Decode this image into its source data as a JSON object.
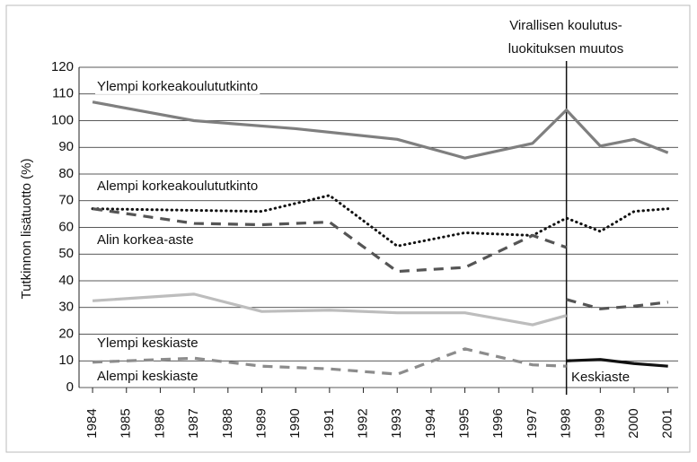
{
  "chart_data": {
    "type": "line",
    "ylabel": "Tutkinnon lisätuotto (%)",
    "annotation": [
      "Virallisen koulutus-",
      "luokituksen muutos"
    ],
    "divider": 1998,
    "xlim": [
      1983.6,
      2001.3
    ],
    "xticks": [
      1984,
      1985,
      1986,
      1987,
      1988,
      1989,
      1990,
      1991,
      1992,
      1993,
      1994,
      1995,
      1996,
      1997,
      1998,
      1999,
      2000,
      2001
    ],
    "ylim": [
      0,
      120
    ],
    "yticks": [
      0,
      10,
      20,
      30,
      40,
      50,
      60,
      70,
      80,
      90,
      100,
      110,
      120
    ],
    "grid": true,
    "series": [
      {
        "name": "Ylempi korkeakoulututkinto",
        "color": "#7f7f7f",
        "style": "solid",
        "x": [
          1984,
          1987,
          1990,
          1993,
          1995,
          1997,
          1998,
          1999,
          2000,
          2001
        ],
        "values": [
          107,
          100,
          97,
          93,
          86,
          91.5,
          104,
          90.5,
          93,
          88
        ]
      },
      {
        "name": "Alempi korkeakoulututkinto",
        "color": "#111111",
        "style": "dotted",
        "x": [
          1984,
          1989,
          1991,
          1993,
          1995,
          1997,
          1998,
          1999,
          2000,
          2001
        ],
        "values": [
          67,
          66,
          72,
          53,
          58,
          57,
          63.5,
          58.5,
          66,
          67
        ]
      },
      {
        "name": "Alin korkea-aste",
        "color": "#555555",
        "style": "dashed",
        "x": [
          1984,
          1987,
          1989,
          1991,
          1993,
          1995,
          1997,
          1998,
          1998,
          1998,
          1999,
          2000,
          2001
        ],
        "values": [
          67,
          61.5,
          61,
          62,
          43.5,
          45,
          57,
          52.5,
          null,
          33,
          29.5,
          30.5,
          32
        ]
      },
      {
        "name": "Ylempi keskiaste",
        "color": "#bdbdbd",
        "style": "solid",
        "x": [
          1984,
          1987,
          1989,
          1991,
          1993,
          1995,
          1997,
          1998
        ],
        "values": [
          32.5,
          35,
          28.5,
          29,
          28,
          28,
          23.5,
          27
        ]
      },
      {
        "name": "Alempi keskiaste",
        "color": "#8c8c8c",
        "style": "dashed",
        "x": [
          1984,
          1987,
          1989,
          1991,
          1993,
          1995,
          1997,
          1998
        ],
        "values": [
          9.5,
          11,
          8,
          7,
          5,
          14.5,
          8.5,
          8
        ]
      },
      {
        "name": "Keskiaste",
        "color": "#111111",
        "style": "solid",
        "x": [
          1998,
          1999,
          2000,
          2001
        ],
        "values": [
          10,
          10.5,
          9,
          8
        ]
      }
    ]
  }
}
